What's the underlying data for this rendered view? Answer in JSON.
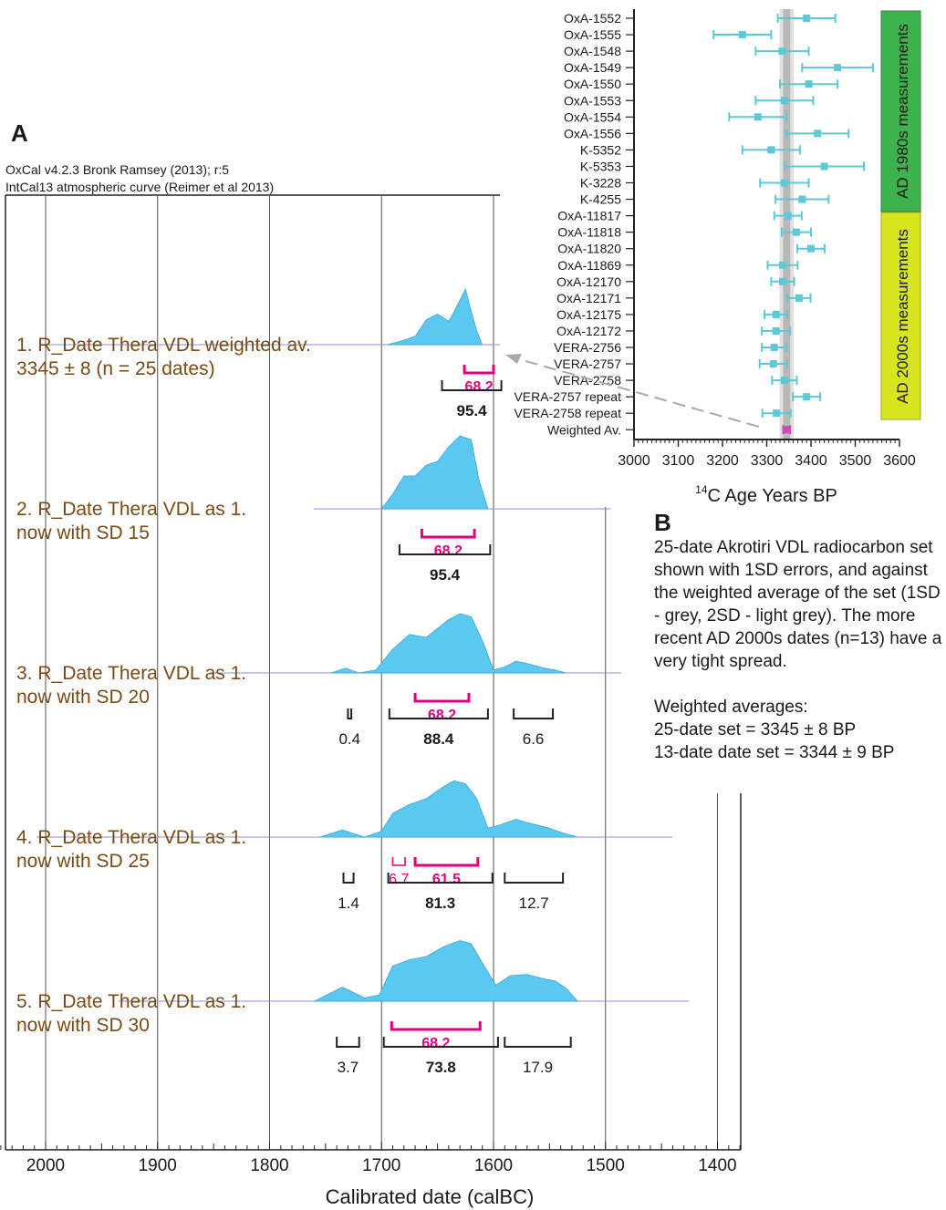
{
  "panel_a": {
    "letter": "A",
    "header_lines": [
      "OxCal v4.2.3 Bronk Ramsey (2013); r:5",
      "IntCal13 atmospheric curve (Reimer et al 2013)"
    ],
    "x_axis_label": "Calibrated date (calBC)",
    "x_ticks": [
      "2000",
      "1900",
      "1800",
      "1700",
      "1600",
      "1500",
      "1400"
    ],
    "rows": [
      {
        "line1": "1. R_Date Thera VDL weighted av.",
        "line2": "3345 ± 8 (n = 25 dates)",
        "ranges68": [
          {
            "from": 1626,
            "to": 1600,
            "label": "68.2"
          }
        ],
        "ranges95": [
          {
            "from": 1646,
            "to": 1593,
            "label": "95.4",
            "bold": true
          }
        ]
      },
      {
        "line1": "2. R_Date Thera VDL as 1.",
        "line2": "now with SD 15",
        "ranges68": [
          {
            "from": 1664,
            "to": 1617,
            "label": "68.2"
          }
        ],
        "ranges95": [
          {
            "from": 1684,
            "to": 1603,
            "label": "95.4",
            "bold": true
          }
        ]
      },
      {
        "line1": "3. R_Date Thera VDL as 1.",
        "line2": "now with SD 20",
        "ranges68": [
          {
            "from": 1670,
            "to": 1622,
            "label": "68.2"
          }
        ],
        "ranges95": [
          {
            "from": 1730,
            "to": 1727,
            "label": "0.4"
          },
          {
            "from": 1693,
            "to": 1605,
            "label": "88.4",
            "bold": true
          },
          {
            "from": 1582,
            "to": 1547,
            "label": "6.6"
          }
        ]
      },
      {
        "line1": "4. R_Date Thera VDL as 1.",
        "line2": "now with SD 25",
        "ranges68": [
          {
            "from": 1690,
            "to": 1679,
            "label": "6.7"
          },
          {
            "from": 1670,
            "to": 1614,
            "label": "61.5"
          }
        ],
        "ranges95": [
          {
            "from": 1734,
            "to": 1725,
            "label": "1.4"
          },
          {
            "from": 1694,
            "to": 1601,
            "label": "81.3",
            "bold": true
          },
          {
            "from": 1590,
            "to": 1538,
            "label": "12.7"
          }
        ]
      },
      {
        "line1": "5. R_Date Thera VDL as 1.",
        "line2": "now with SD 30",
        "ranges68": [
          {
            "from": 1691,
            "to": 1612,
            "label": "68.2"
          }
        ],
        "ranges95": [
          {
            "from": 1740,
            "to": 1720,
            "label": "3.7"
          },
          {
            "from": 1698,
            "to": 1596,
            "label": "73.8",
            "bold": true
          },
          {
            "from": 1590,
            "to": 1531,
            "label": "17.9"
          }
        ]
      }
    ]
  },
  "panel_b": {
    "letter": "B",
    "description": "25-date Akrotiri VDL radiocarbon set shown with 1SD errors, and against the weighted average of the set (1SD - grey, 2SD - light grey). The more recent AD 2000s dates (n=13) have a very tight spread.",
    "weighted_title": "Weighted averages:",
    "weighted_items": [
      "25-date set = 3345 ± 8 BP",
      "13-date date set = 3344 ± 9 BP"
    ],
    "x_ticks": [
      "3000",
      "3100",
      "3200",
      "3300",
      "3400",
      "3500",
      "3600"
    ],
    "x_label_super": "14",
    "x_label": "C Age Years BP",
    "band_1980s": "AD 1980s measurements",
    "band_2000s": "AD 2000s measurements",
    "weighted_av": {
      "label": "Weighted Av.",
      "value": 3345,
      "err": 8
    }
  },
  "chart_data": [
    {
      "type": "area",
      "title": "",
      "xlabel": "Calibrated date (calBC)",
      "xlim": [
        2040,
        1380
      ],
      "x_reversed": true,
      "series": [
        {
          "name": "1. R_Date Thera VDL weighted av.",
          "x": [
            1695,
            1680,
            1670,
            1660,
            1650,
            1640,
            1635,
            1630,
            1625,
            1620,
            1615,
            1610
          ],
          "y": [
            0,
            0.08,
            0.15,
            0.45,
            0.55,
            0.42,
            0.6,
            0.8,
            1.0,
            0.6,
            0.25,
            0
          ]
        },
        {
          "name": "2. R_Date Thera VDL as 1.",
          "x": [
            1700,
            1690,
            1680,
            1670,
            1660,
            1650,
            1640,
            1630,
            1620,
            1613,
            1605
          ],
          "y": [
            0,
            0.2,
            0.45,
            0.45,
            0.6,
            0.65,
            0.85,
            1.0,
            0.95,
            0.4,
            0
          ]
        },
        {
          "name": "3. R_Date Thera VDL as 1.",
          "x": [
            1745,
            1732,
            1720,
            1705,
            1690,
            1675,
            1660,
            1640,
            1630,
            1620,
            1610,
            1600,
            1590,
            1580,
            1568,
            1555,
            1545,
            1535
          ],
          "y": [
            0,
            0.08,
            0,
            0.05,
            0.4,
            0.65,
            0.6,
            0.9,
            1.0,
            0.95,
            0.55,
            0.05,
            0.1,
            0.2,
            0.15,
            0.08,
            0.05,
            0
          ]
        },
        {
          "name": "4. R_Date Thera VDL as 1.",
          "x": [
            1755,
            1735,
            1715,
            1700,
            1690,
            1675,
            1660,
            1645,
            1635,
            1625,
            1615,
            1605,
            1595,
            1580,
            1565,
            1550,
            1540,
            1525
          ],
          "y": [
            0,
            0.12,
            0,
            0.1,
            0.4,
            0.55,
            0.65,
            0.85,
            0.95,
            0.9,
            0.65,
            0.15,
            0.2,
            0.3,
            0.22,
            0.15,
            0.08,
            0
          ]
        },
        {
          "name": "5. R_Date Thera VDL as 1.",
          "x": [
            1760,
            1735,
            1715,
            1702,
            1690,
            1675,
            1660,
            1645,
            1630,
            1620,
            1610,
            1598,
            1585,
            1570,
            1555,
            1545,
            1535,
            1525
          ],
          "y": [
            0,
            0.22,
            0.05,
            0.1,
            0.55,
            0.65,
            0.7,
            0.85,
            0.95,
            0.9,
            0.6,
            0.25,
            0.4,
            0.42,
            0.35,
            0.32,
            0.2,
            0
          ]
        }
      ]
    },
    {
      "type": "scatter",
      "title": "",
      "xlabel": "14C Age Years BP",
      "xlim": [
        3000,
        3600
      ],
      "grid": false,
      "points": [
        {
          "label": "OxA-1552",
          "value": 3390,
          "err": 65,
          "group": "AD 1980s measurements"
        },
        {
          "label": "OxA-1555",
          "value": 3245,
          "err": 65,
          "group": "AD 1980s measurements"
        },
        {
          "label": "OxA-1548",
          "value": 3335,
          "err": 60,
          "group": "AD 1980s measurements"
        },
        {
          "label": "OxA-1549",
          "value": 3460,
          "err": 80,
          "group": "AD 1980s measurements"
        },
        {
          "label": "OxA-1550",
          "value": 3395,
          "err": 65,
          "group": "AD 1980s measurements"
        },
        {
          "label": "OxA-1553",
          "value": 3340,
          "err": 65,
          "group": "AD 1980s measurements"
        },
        {
          "label": "OxA-1554",
          "value": 3280,
          "err": 65,
          "group": "AD 1980s measurements"
        },
        {
          "label": "OxA-1556",
          "value": 3415,
          "err": 70,
          "group": "AD 1980s measurements"
        },
        {
          "label": "K-5352",
          "value": 3310,
          "err": 65,
          "group": "AD 1980s measurements"
        },
        {
          "label": "K-5353",
          "value": 3430,
          "err": 90,
          "group": "AD 1980s measurements"
        },
        {
          "label": "K-3228",
          "value": 3340,
          "err": 55,
          "group": "AD 1980s measurements"
        },
        {
          "label": "K-4255",
          "value": 3380,
          "err": 60,
          "group": "AD 1980s measurements"
        },
        {
          "label": "OxA-11817",
          "value": 3348,
          "err": 31,
          "group": "AD 2000s measurements"
        },
        {
          "label": "OxA-11818",
          "value": 3367,
          "err": 33,
          "group": "AD 2000s measurements"
        },
        {
          "label": "OxA-11820",
          "value": 3400,
          "err": 31,
          "group": "AD 2000s measurements"
        },
        {
          "label": "OxA-11869",
          "value": 3336,
          "err": 34,
          "group": "AD 2000s measurements"
        },
        {
          "label": "OxA-12170",
          "value": 3336,
          "err": 26,
          "group": "AD 2000s measurements"
        },
        {
          "label": "OxA-12171",
          "value": 3373,
          "err": 26,
          "group": "AD 2000s measurements"
        },
        {
          "label": "OxA-12175",
          "value": 3321,
          "err": 26,
          "group": "AD 2000s measurements"
        },
        {
          "label": "OxA-12172",
          "value": 3321,
          "err": 32,
          "group": "AD 2000s measurements"
        },
        {
          "label": "VERA-2756",
          "value": 3317,
          "err": 28,
          "group": "AD 2000s measurements"
        },
        {
          "label": "VERA-2757",
          "value": 3315,
          "err": 31,
          "group": "AD 2000s measurements"
        },
        {
          "label": "VERA-2758",
          "value": 3340,
          "err": 28,
          "group": "AD 2000s measurements"
        },
        {
          "label": "VERA-2757 repeat",
          "value": 3390,
          "err": 31,
          "group": "AD 2000s measurements"
        },
        {
          "label": "VERA-2758 repeat",
          "value": 3322,
          "err": 32,
          "group": "AD 2000s measurements"
        }
      ]
    }
  ],
  "colors": {
    "distribution": "#5bc8f0",
    "range68": "#e4007c",
    "text_brown": "#7a4a14",
    "point": "#5cc8d8",
    "band_green": "#3cb44b",
    "band_yellow": "#d7e51f",
    "weighted_grey": "#b3b3b3",
    "weighted_marker": "#d04ab0",
    "row_baseline": "#8c8cd0"
  }
}
